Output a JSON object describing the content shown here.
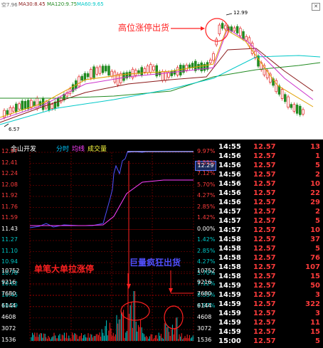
{
  "kline": {
    "ma_legend": [
      {
        "text": "空7.96",
        "color": "#666666"
      },
      {
        "text": "MA30:8.45",
        "color": "#8b1a1a"
      },
      {
        "text": "MA120:9.75",
        "color": "#228b22"
      },
      {
        "text": "MA60:9.65",
        "color": "#00c8c8"
      }
    ],
    "high_label": "12.99",
    "low_label": "6.57",
    "annotation": "高位涨停出货"
  },
  "intraday": {
    "title": "金山开发",
    "tab_time": "分时",
    "tab_avg": "均线",
    "tab_vol": "成交量",
    "price_label": "12.29",
    "annotation_big_order": "单笔大单拉涨停",
    "annotation_volume": "巨量疯狂出货",
    "left_axis": [
      "12.57",
      "12.41",
      "12.24",
      "12.08",
      "11.92",
      "11.76",
      "11.59",
      "11.43",
      "11.27",
      "11.10",
      "10.94",
      "10.78",
      "10.62",
      "10.45",
      "10.29"
    ],
    "right_axis": [
      "9.97%",
      "8.55%",
      "7.12%",
      "5.70%",
      "4.27%",
      "2.85%",
      "1.42%",
      "0.00%",
      "1.42%",
      "2.85%",
      "4.27%",
      "5.70%",
      "7.12%",
      "8.55%",
      "9.97%"
    ],
    "vol_axis": [
      "10752",
      "9216",
      "7680",
      "6144",
      "4608",
      "3072",
      "1536"
    ],
    "colors": {
      "up": "#ff2020",
      "down": "#00c8c8",
      "price_line": "#5050ff",
      "avg_line": "#ff40ff",
      "grid": "#a00000"
    }
  },
  "ticks": [
    {
      "time": "14:55",
      "price": "12.57",
      "vol": "13"
    },
    {
      "time": "14:56",
      "price": "12.57",
      "vol": "1"
    },
    {
      "time": "14:56",
      "price": "12.57",
      "vol": "5"
    },
    {
      "time": "14:56",
      "price": "12.57",
      "vol": "2"
    },
    {
      "time": "14:56",
      "price": "12.57",
      "vol": "10"
    },
    {
      "time": "14:56",
      "price": "12.57",
      "vol": "22"
    },
    {
      "time": "14:56",
      "price": "12.57",
      "vol": "29"
    },
    {
      "time": "14:57",
      "price": "12.57",
      "vol": "2"
    },
    {
      "time": "14:57",
      "price": "12.57",
      "vol": "5"
    },
    {
      "time": "14:57",
      "price": "12.57",
      "vol": "10"
    },
    {
      "time": "14:58",
      "price": "12.57",
      "vol": "37"
    },
    {
      "time": "14:58",
      "price": "12.57",
      "vol": "5"
    },
    {
      "time": "14:58",
      "price": "12.57",
      "vol": "76"
    },
    {
      "time": "14:58",
      "price": "12.57",
      "vol": "107"
    },
    {
      "time": "14:58",
      "price": "12.57",
      "vol": "15"
    },
    {
      "time": "14:59",
      "price": "12.57",
      "vol": "50"
    },
    {
      "time": "14:59",
      "price": "12.57",
      "vol": "3"
    },
    {
      "time": "14:59",
      "price": "12.57",
      "vol": "322"
    },
    {
      "time": "14:59",
      "price": "12.57",
      "vol": "3"
    },
    {
      "time": "14:59",
      "price": "12.57",
      "vol": "11"
    },
    {
      "time": "14:59",
      "price": "12.57",
      "vol": "15"
    },
    {
      "time": "15:00",
      "price": "12.57",
      "vol": "5"
    }
  ]
}
